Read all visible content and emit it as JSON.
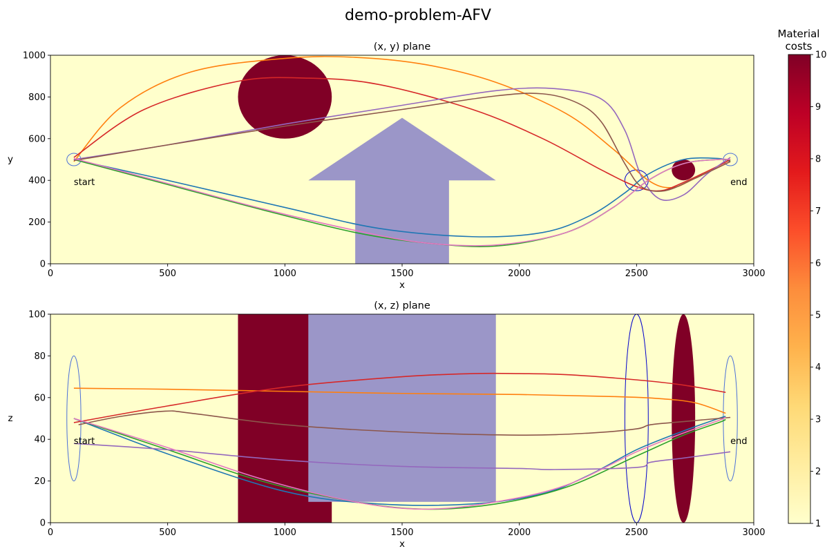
{
  "figure": {
    "title": "demo-problem-AFV"
  },
  "chart_data": [
    {
      "type": "line",
      "title": "(x, y) plane",
      "xlabel": "x",
      "ylabel": "y",
      "xlim": [
        0,
        3000
      ],
      "ylim": [
        0,
        1000
      ],
      "xticks": [
        0,
        500,
        1000,
        1500,
        2000,
        2500,
        3000
      ],
      "yticks": [
        0,
        200,
        400,
        600,
        800,
        1000
      ],
      "background_color": "#ffffcc",
      "annotations": [
        {
          "text": "start",
          "x": 100,
          "y": 390
        },
        {
          "text": "end",
          "x": 2900,
          "y": 390
        }
      ],
      "obstacles": [
        {
          "kind": "ellipse",
          "cx": 1000,
          "cy": 800,
          "rx": 200,
          "ry": 200,
          "color": "#800026"
        },
        {
          "kind": "ellipse",
          "cx": 2700,
          "cy": 450,
          "rx": 50,
          "ry": 50,
          "color": "#800026"
        },
        {
          "kind": "polygon",
          "color": "#9b96c8",
          "points": [
            [
              1300,
              0
            ],
            [
              1300,
              400
            ],
            [
              1100,
              400
            ],
            [
              1500,
              700
            ],
            [
              1900,
              400
            ],
            [
              1700,
              400
            ],
            [
              1700,
              0
            ]
          ]
        }
      ],
      "waypoints": [
        {
          "cx": 100,
          "cy": 500,
          "rx": 30,
          "ry": 30,
          "color": "#4a6fd8"
        },
        {
          "cx": 2500,
          "cy": 400,
          "rx": 50,
          "ry": 50,
          "color": "#0000cc"
        },
        {
          "cx": 2900,
          "cy": 500,
          "rx": 30,
          "ry": 30,
          "color": "#4a6fd8"
        }
      ],
      "series": [
        {
          "color": "#1f77b4",
          "x": [
            100,
            500,
            1000,
            1400,
            1800,
            2100,
            2300,
            2450,
            2550,
            2700,
            2850,
            2900
          ],
          "y": [
            500,
            400,
            270,
            170,
            130,
            150,
            230,
            340,
            430,
            500,
            505,
            490
          ]
        },
        {
          "color": "#ff7f0e",
          "x": [
            100,
            300,
            600,
            1000,
            1300,
            1600,
            1900,
            2200,
            2400,
            2550,
            2650,
            2750,
            2900
          ],
          "y": [
            490,
            750,
            920,
            985,
            990,
            955,
            870,
            720,
            550,
            400,
            365,
            410,
            490
          ]
        },
        {
          "color": "#2ca02c",
          "x": [
            100,
            500,
            900,
            1300,
            1600,
            1900,
            2200,
            2400,
            2550,
            2700,
            2850,
            2900
          ],
          "y": [
            500,
            380,
            260,
            150,
            100,
            85,
            150,
            270,
            400,
            480,
            500,
            495
          ]
        },
        {
          "color": "#d62728",
          "x": [
            100,
            400,
            800,
            1100,
            1400,
            1800,
            2100,
            2350,
            2500,
            2600,
            2700,
            2850,
            2900
          ],
          "y": [
            510,
            740,
            875,
            890,
            860,
            740,
            600,
            450,
            370,
            350,
            390,
            470,
            500
          ]
        },
        {
          "color": "#9467bd",
          "x": [
            100,
            500,
            1000,
            1500,
            1900,
            2150,
            2350,
            2450,
            2520,
            2600,
            2700,
            2800,
            2900
          ],
          "y": [
            500,
            570,
            670,
            760,
            830,
            840,
            790,
            640,
            420,
            310,
            330,
            430,
            510
          ]
        },
        {
          "color": "#8c564b",
          "x": [
            100,
            500,
            1000,
            1500,
            1900,
            2100,
            2250,
            2350,
            2450,
            2520,
            2620,
            2750,
            2900
          ],
          "y": [
            495,
            570,
            660,
            740,
            805,
            815,
            770,
            680,
            480,
            370,
            350,
            410,
            490
          ]
        },
        {
          "color": "#e377c2",
          "x": [
            100,
            500,
            900,
            1300,
            1600,
            1900,
            2200,
            2400,
            2550,
            2700,
            2850,
            2900
          ],
          "y": [
            505,
            385,
            265,
            160,
            100,
            90,
            150,
            270,
            400,
            480,
            500,
            500
          ]
        }
      ]
    },
    {
      "type": "line",
      "title": "(x, z) plane",
      "xlabel": "x",
      "ylabel": "z",
      "xlim": [
        0,
        3000
      ],
      "ylim": [
        0,
        100
      ],
      "xticks": [
        0,
        500,
        1000,
        1500,
        2000,
        2500,
        3000
      ],
      "yticks": [
        0,
        20,
        40,
        60,
        80,
        100
      ],
      "background_color": "#ffffcc",
      "annotations": [
        {
          "text": "start",
          "x": 100,
          "y": 39
        },
        {
          "text": "end",
          "x": 2900,
          "y": 39
        }
      ],
      "obstacles": [
        {
          "kind": "rect",
          "x0": 800,
          "x1": 1200,
          "y0": 0,
          "y1": 100,
          "color": "#800026"
        },
        {
          "kind": "rect",
          "x0": 1100,
          "x1": 1900,
          "y0": 10,
          "y1": 100,
          "color": "#9b96c8"
        },
        {
          "kind": "ellipse",
          "cx": 2700,
          "cy": 50,
          "rx": 50,
          "ry": 50,
          "color": "#800026"
        }
      ],
      "waypoints": [
        {
          "cx": 100,
          "cy": 50,
          "rx": 30,
          "ry": 30,
          "color": "#4a6fd8"
        },
        {
          "cx": 2500,
          "cy": 50,
          "rx": 50,
          "ry": 50,
          "color": "#0000cc"
        },
        {
          "cx": 2900,
          "cy": 50,
          "rx": 30,
          "ry": 30,
          "color": "#4a6fd8"
        }
      ],
      "series": [
        {
          "color": "#1f77b4",
          "x": [
            100,
            500,
            1000,
            1400,
            1800,
            2100,
            2300,
            2500,
            2700,
            2850,
            2880
          ],
          "y": [
            50,
            33,
            15,
            9,
            9,
            14,
            23,
            35,
            44,
            50,
            51
          ]
        },
        {
          "color": "#ff7f0e",
          "x": [
            100,
            500,
            1000,
            1500,
            2000,
            2400,
            2600,
            2750,
            2880
          ],
          "y": [
            64.5,
            64,
            63,
            62,
            61.5,
            60.5,
            59.5,
            57.5,
            52.5
          ]
        },
        {
          "color": "#2ca02c",
          "x": [
            100,
            500,
            900,
            1300,
            1600,
            1900,
            2200,
            2500,
            2700,
            2850,
            2880
          ],
          "y": [
            50,
            35,
            20,
            10,
            6.5,
            9,
            17,
            32,
            42,
            48,
            49.5
          ]
        },
        {
          "color": "#d62728",
          "x": [
            100,
            500,
            1000,
            1500,
            1800,
            2000,
            2200,
            2500,
            2700,
            2880
          ],
          "y": [
            48,
            56,
            65,
            70,
            71.5,
            71.5,
            71,
            68.5,
            66,
            62.5
          ]
        },
        {
          "color": "#9467bd",
          "x": [
            100,
            500,
            1000,
            1500,
            2000,
            2150,
            2500,
            2560,
            2700,
            2900
          ],
          "y": [
            38,
            35,
            30,
            27,
            26,
            25.5,
            26.5,
            29,
            31,
            34
          ]
        },
        {
          "color": "#8c564b",
          "x": [
            120,
            300,
            490,
            600,
            1000,
            1500,
            2000,
            2300,
            2500,
            2560,
            2700,
            2900
          ],
          "y": [
            47,
            51,
            53.5,
            52.5,
            47,
            43.5,
            42,
            43,
            45,
            47,
            48.5,
            50.5
          ]
        },
        {
          "color": "#e377c2",
          "x": [
            100,
            500,
            900,
            1300,
            1600,
            1900,
            2200,
            2500,
            2700,
            2850,
            2880
          ],
          "y": [
            50,
            36,
            21,
            10,
            6.5,
            10,
            18,
            34,
            43,
            49,
            50.5
          ]
        }
      ]
    }
  ],
  "colorbar": {
    "label_line1": "Material",
    "label_line2": "costs",
    "min": 1,
    "max": 10,
    "ticks": [
      1,
      2,
      3,
      4,
      5,
      6,
      7,
      8,
      9,
      10
    ],
    "stops": [
      "#ffffcc",
      "#ffeda0",
      "#fed976",
      "#feb24c",
      "#fd8d3c",
      "#fc4e2a",
      "#e31a1c",
      "#bd0026",
      "#800026"
    ]
  }
}
